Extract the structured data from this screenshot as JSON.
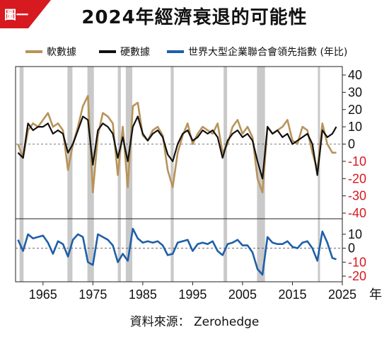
{
  "badge": {
    "label": "圖一"
  },
  "header": {
    "title": "2024年經濟衰退的可能性"
  },
  "footer": {
    "source": "資料來源： Zerohedge"
  },
  "colors": {
    "soft": "#b8935a",
    "hard": "#111111",
    "lei": "#1f5fa8",
    "recession": "#c9c9c9",
    "badge": "#d71920",
    "negative": "#d71920"
  },
  "chart_data": {
    "type": "line",
    "x_unit_label": "年",
    "xlim": [
      1959.5,
      2025
    ],
    "x_ticks": [
      1965,
      1975,
      1985,
      1995,
      2005,
      2015,
      2025
    ],
    "legend": [
      {
        "key": "soft",
        "label": "軟數據"
      },
      {
        "key": "hard",
        "label": "硬數據"
      },
      {
        "key": "lei",
        "label": "世界大型企業聯合會領先指數 (年比)"
      }
    ],
    "recessions": [
      [
        1960.3,
        1961.1
      ],
      [
        1969.9,
        1970.9
      ],
      [
        1973.9,
        1975.2
      ],
      [
        1980.0,
        1980.6
      ],
      [
        1981.6,
        1982.9
      ],
      [
        1990.6,
        1991.2
      ],
      [
        2001.2,
        2001.9
      ],
      [
        2007.9,
        2009.5
      ],
      [
        2020.1,
        2020.4
      ]
    ],
    "upper": {
      "ylim": [
        -40,
        40
      ],
      "y_ticks": [
        40,
        30,
        20,
        10,
        0,
        -10,
        -20,
        -30,
        -40
      ],
      "series": [
        {
          "key": "soft",
          "name": "軟數據",
          "x": [
            1960,
            1961,
            1962,
            1963,
            1964,
            1965,
            1966,
            1967,
            1968,
            1969,
            1970,
            1971,
            1972,
            1973,
            1974,
            1975,
            1976,
            1977,
            1978,
            1979,
            1980,
            1981,
            1982,
            1983,
            1984,
            1985,
            1986,
            1987,
            1988,
            1989,
            1990,
            1991,
            1992,
            1993,
            1994,
            1995,
            1996,
            1997,
            1998,
            1999,
            2000,
            2001,
            2002,
            2003,
            2004,
            2005,
            2006,
            2007,
            2008,
            2009,
            2010,
            2011,
            2012,
            2013,
            2014,
            2015,
            2016,
            2017,
            2018,
            2019,
            2020,
            2021,
            2022,
            2023,
            2023.8
          ],
          "values": [
            0,
            -8,
            8,
            12,
            10,
            14,
            18,
            10,
            12,
            8,
            -15,
            0,
            10,
            22,
            28,
            -28,
            5,
            18,
            16,
            12,
            -18,
            10,
            -25,
            22,
            24,
            5,
            2,
            8,
            10,
            5,
            -15,
            -25,
            -5,
            5,
            12,
            0,
            6,
            10,
            8,
            6,
            12,
            -5,
            0,
            10,
            14,
            6,
            10,
            4,
            -20,
            -28,
            10,
            6,
            8,
            10,
            14,
            2,
            0,
            10,
            8,
            -5,
            -15,
            12,
            0,
            -5,
            -5
          ]
        },
        {
          "key": "hard",
          "name": "硬數據",
          "x": [
            1960,
            1961,
            1962,
            1963,
            1964,
            1965,
            1966,
            1967,
            1968,
            1969,
            1970,
            1971,
            1972,
            1973,
            1974,
            1975,
            1976,
            1977,
            1978,
            1979,
            1980,
            1981,
            1982,
            1983,
            1984,
            1985,
            1986,
            1987,
            1988,
            1989,
            1990,
            1991,
            1992,
            1993,
            1994,
            1995,
            1996,
            1997,
            1998,
            1999,
            2000,
            2001,
            2002,
            2003,
            2004,
            2005,
            2006,
            2007,
            2008,
            2009,
            2010,
            2011,
            2012,
            2013,
            2014,
            2015,
            2016,
            2017,
            2018,
            2019,
            2020,
            2021,
            2022,
            2023,
            2023.8
          ],
          "values": [
            -5,
            -8,
            12,
            8,
            10,
            10,
            12,
            6,
            8,
            6,
            -5,
            0,
            8,
            16,
            14,
            -12,
            8,
            12,
            10,
            6,
            -8,
            4,
            -10,
            10,
            16,
            6,
            2,
            6,
            8,
            4,
            -6,
            -10,
            0,
            6,
            8,
            2,
            4,
            8,
            6,
            8,
            4,
            -8,
            2,
            6,
            8,
            4,
            6,
            2,
            -10,
            -20,
            10,
            6,
            8,
            4,
            6,
            0,
            2,
            4,
            6,
            0,
            -18,
            8,
            4,
            6,
            10
          ]
        }
      ]
    },
    "lower": {
      "ylim": [
        -20,
        15
      ],
      "y_ticks": [
        10,
        0,
        -10,
        -20
      ],
      "series": [
        {
          "key": "lei",
          "name": "世界大型企業聯合會領先指數 (年比)",
          "x": [
            1960,
            1961,
            1962,
            1963,
            1964,
            1965,
            1966,
            1967,
            1968,
            1969,
            1970,
            1971,
            1972,
            1973,
            1974,
            1975,
            1976,
            1977,
            1978,
            1979,
            1980,
            1981,
            1982,
            1983,
            1984,
            1985,
            1986,
            1987,
            1988,
            1989,
            1990,
            1991,
            1992,
            1993,
            1994,
            1995,
            1996,
            1997,
            1998,
            1999,
            2000,
            2001,
            2002,
            2003,
            2004,
            2005,
            2006,
            2007,
            2008,
            2009,
            2010,
            2011,
            2012,
            2013,
            2014,
            2015,
            2016,
            2017,
            2018,
            2019,
            2020,
            2021,
            2022,
            2023,
            2023.8
          ],
          "values": [
            6,
            -2,
            10,
            7,
            8,
            9,
            4,
            -4,
            5,
            3,
            -6,
            6,
            10,
            8,
            -10,
            -12,
            10,
            8,
            6,
            2,
            -10,
            -4,
            -9,
            14,
            7,
            4,
            5,
            4,
            5,
            2,
            -5,
            -4,
            4,
            5,
            6,
            -2,
            3,
            4,
            3,
            5,
            -2,
            -5,
            3,
            4,
            6,
            2,
            2,
            -3,
            -15,
            -19,
            8,
            4,
            3,
            3,
            5,
            1,
            0,
            4,
            5,
            0,
            -9,
            12,
            4,
            -7,
            -8
          ]
        }
      ]
    }
  }
}
